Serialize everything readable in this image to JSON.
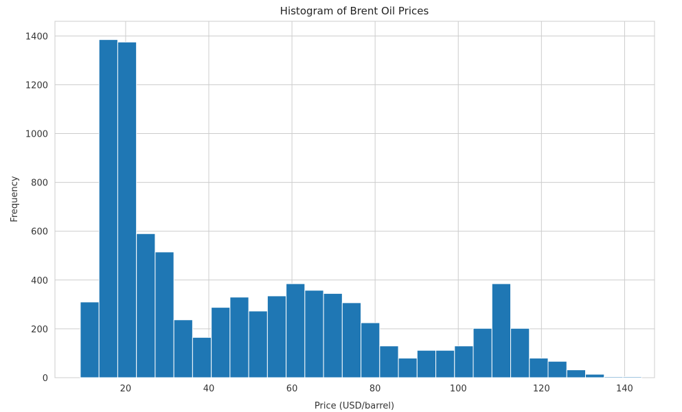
{
  "chart_data": {
    "type": "bar",
    "title": "Histogram of Brent Oil Prices",
    "xlabel": "Price (USD/barrel)",
    "ylabel": "Frequency",
    "xlim": [
      3,
      147.2
    ],
    "ylim": [
      0,
      1460
    ],
    "xticks": [
      20,
      40,
      60,
      80,
      100,
      120,
      140
    ],
    "yticks": [
      0,
      200,
      400,
      600,
      800,
      1000,
      1200,
      1400
    ],
    "grid": true,
    "bar_color": "#1f77b4",
    "bin_start": 9.1,
    "bin_width": 4.5,
    "values": [
      310,
      1385,
      1375,
      590,
      515,
      237,
      165,
      288,
      330,
      273,
      335,
      385,
      358,
      345,
      307,
      225,
      130,
      80,
      112,
      112,
      130,
      202,
      385,
      202,
      80,
      67,
      32,
      14,
      4,
      4
    ]
  }
}
